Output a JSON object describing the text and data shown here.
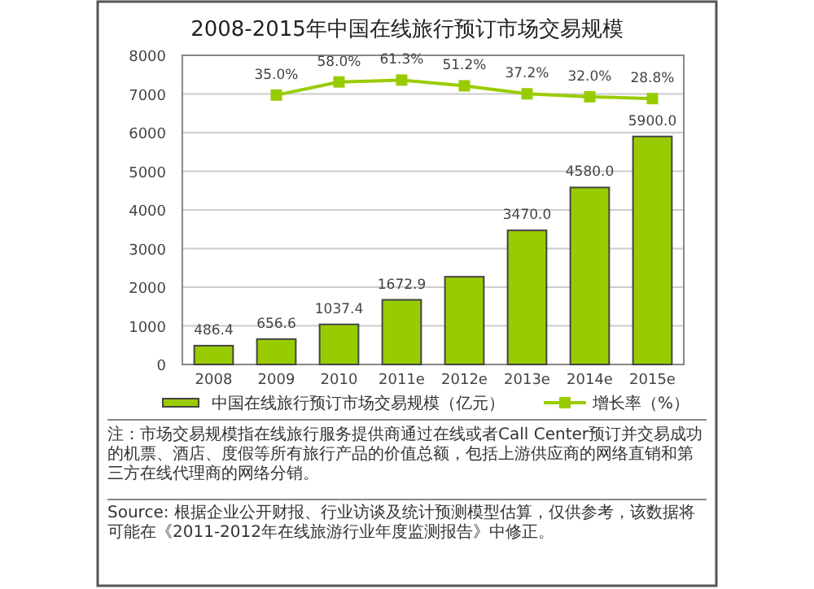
{
  "chart_data": {
    "type": "bar",
    "title": "2008-2015年中国在线旅行预订市场交易规模",
    "categories": [
      "2008",
      "2009",
      "2010",
      "2011e",
      "2012e",
      "2013e",
      "2014e",
      "2015e"
    ],
    "series": [
      {
        "name": "中国在线旅行预订市场交易规模（亿元）",
        "color": "#99cc00",
        "values": [
          486.4,
          656.6,
          1037.4,
          1672.9,
          2270,
          3470.0,
          4580.0,
          5900.0
        ],
        "value_labels": [
          "486.4",
          "656.6",
          "1037.4",
          "1672.9",
          null,
          "3470.0",
          "4580.0",
          "5900.0"
        ]
      },
      {
        "name": "增长率（%）",
        "type": "line",
        "axis": "y2",
        "color": "#99cc00",
        "values": [
          null,
          35.0,
          58.0,
          61.3,
          51.2,
          37.2,
          32.0,
          28.8
        ],
        "value_labels": [
          null,
          "35.0%",
          "58.0%",
          "61.3%",
          "51.2%",
          "37.2%",
          "32.0%",
          "28.8%"
        ]
      }
    ],
    "ylim": [
      0,
      8000
    ],
    "yticks": [
      0,
      1000,
      2000,
      3000,
      4000,
      5000,
      6000,
      7000,
      8000
    ],
    "grid": "y",
    "legend": "bottom",
    "marker": "square",
    "annotations": [
      "注：市场交易规模指在线旅行服务提供商通过在线或者Call Center预订并交易成功的机票、酒店、度假等所有旅行产品的价值总额，包括上游供应商的网络直销和第三方在线代理商的网络分销。",
      "Source: 根据企业公开财报、行业访谈及统计预测模型估算，仅供参考，该数据将可能在《2011-2012年在线旅游行业年度监测报告》中修正。"
    ]
  }
}
